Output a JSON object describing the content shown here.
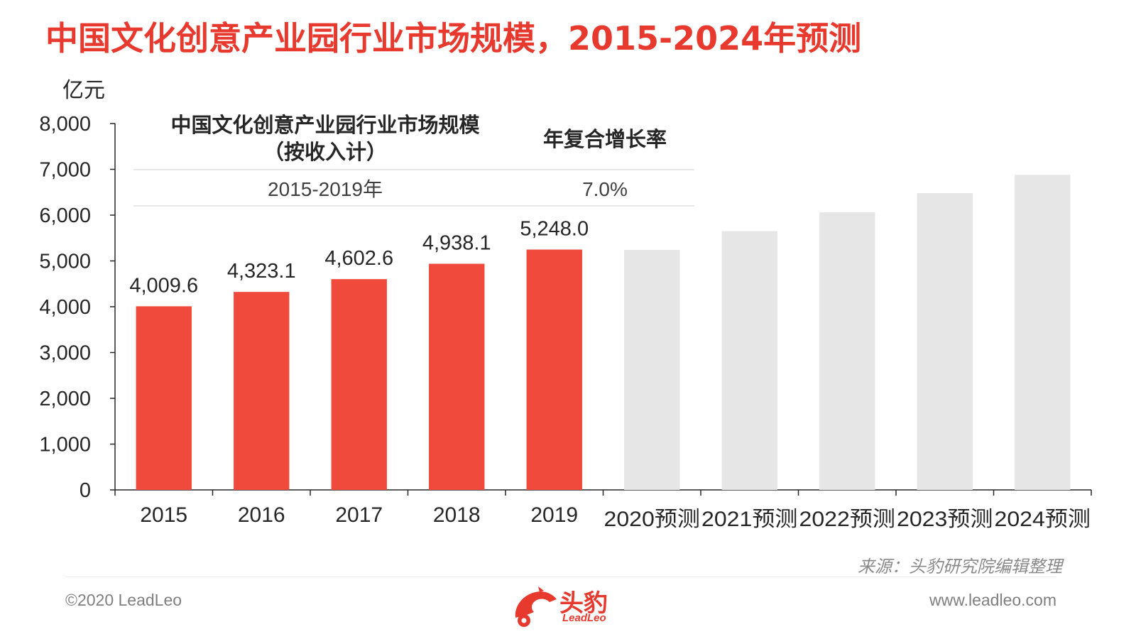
{
  "title": "中国文化创意产业园行业市场规模，2015-2024年预测",
  "footer": {
    "copyright": "©2020 LeadLeo",
    "source": "来源：头豹研究院编辑整理",
    "website": "www.leadleo.com",
    "logo_cn": "头豹",
    "logo_en": "LeadLeo"
  },
  "colors": {
    "title": "#e8392f",
    "actual_bar": "#f04a3c",
    "forecast_bar": "#e6e6e6",
    "axis": "#262626",
    "gridline": "#e0e0e0"
  },
  "chart_data": {
    "type": "bar",
    "ylabel": "亿元",
    "ylim": [
      0,
      8000
    ],
    "yticks": [
      "0",
      "1,000",
      "2,000",
      "3,000",
      "4,000",
      "5,000",
      "6,000",
      "7,000",
      "8,000"
    ],
    "categories": [
      "2015",
      "2016",
      "2017",
      "2018",
      "2019",
      "2020预测",
      "2021预测",
      "2022预测",
      "2023预测",
      "2024预测"
    ],
    "values": [
      4009.6,
      4323.1,
      4602.6,
      4938.1,
      5248.0,
      5240,
      5650,
      6060,
      6480,
      6880
    ],
    "forecast": [
      false,
      false,
      false,
      false,
      false,
      true,
      true,
      true,
      true,
      true
    ],
    "data_labels": [
      "4,009.6",
      "4,323.1",
      "4,602.6",
      "4,938.1",
      "5,248.0",
      "",
      "",
      "",
      "",
      ""
    ],
    "cagr_table": {
      "header_left_line1": "中国文化创意产业园行业市场规模",
      "header_left_line2": "（按收入计）",
      "header_right": "年复合增长率",
      "period": "2015-2019年",
      "rate": "7.0%"
    }
  }
}
